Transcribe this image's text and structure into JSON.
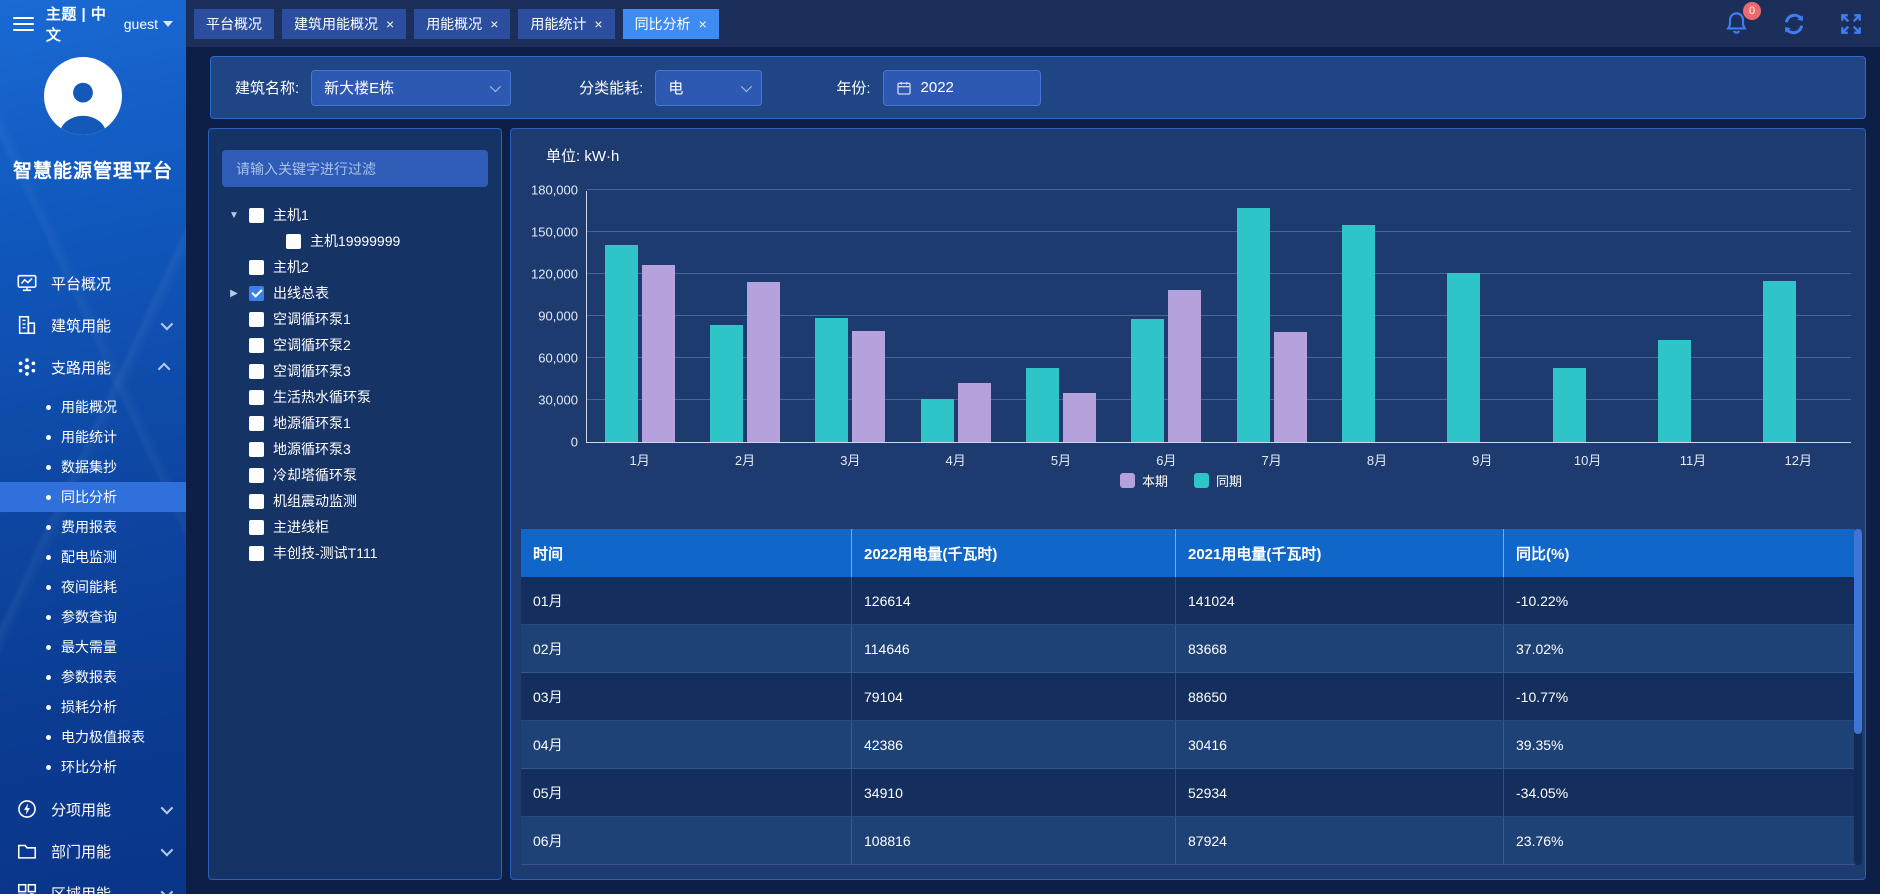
{
  "sidebar": {
    "top": {
      "theme_lang": "主题 | 中文",
      "user": "guest"
    },
    "brand": "智慧能源管理平台",
    "menu": [
      {
        "label": "平台概况",
        "icon": "monitor-icon"
      },
      {
        "label": "建筑用能",
        "icon": "building-icon",
        "chevron": "down"
      },
      {
        "label": "支路用能",
        "icon": "branch-icon",
        "chevron": "up",
        "active_child": "同比分析",
        "children": [
          "用能概况",
          "用能统计",
          "数据集抄",
          "同比分析",
          "费用报表",
          "配电监测",
          "夜间能耗",
          "参数查询",
          "最大需量",
          "参数报表",
          "损耗分析",
          "电力极值报表",
          "环比分析"
        ]
      },
      {
        "label": "分项用能",
        "icon": "energy-icon",
        "chevron": "down"
      },
      {
        "label": "部门用能",
        "icon": "folder-icon",
        "chevron": "down"
      },
      {
        "label": "区域用能",
        "icon": "region-icon",
        "chevron": "down"
      }
    ]
  },
  "topbar": {
    "tabs": [
      {
        "label": "平台概况",
        "closable": false,
        "active": false
      },
      {
        "label": "建筑用能概况",
        "closable": true,
        "active": false
      },
      {
        "label": "用能概况",
        "closable": true,
        "active": false
      },
      {
        "label": "用能统计",
        "closable": true,
        "active": false
      },
      {
        "label": "同比分析",
        "closable": true,
        "active": true
      }
    ],
    "notification_count": "0"
  },
  "filters": {
    "building_label": "建筑名称:",
    "building_value": "新大楼E栋",
    "category_label": "分类能耗:",
    "category_value": "电",
    "year_label": "年份:",
    "year_value": "2022"
  },
  "tree": {
    "search_placeholder": "请输入关键字进行过滤",
    "items": [
      {
        "label": "主机1",
        "arrow": "down",
        "checked": false,
        "level": 0
      },
      {
        "label": "主机19999999",
        "checked": false,
        "level": 1
      },
      {
        "label": "主机2",
        "checked": false,
        "level": 0
      },
      {
        "label": "出线总表",
        "arrow": "right",
        "checked": true,
        "level": 0
      },
      {
        "label": "空调循环泵1",
        "checked": false,
        "level": 0
      },
      {
        "label": "空调循环泵2",
        "checked": false,
        "level": 0
      },
      {
        "label": "空调循环泵3",
        "checked": false,
        "level": 0
      },
      {
        "label": "生活热水循环泵",
        "checked": false,
        "level": 0
      },
      {
        "label": "地源循环泵1",
        "checked": false,
        "level": 0
      },
      {
        "label": "地源循环泵3",
        "checked": false,
        "level": 0
      },
      {
        "label": "冷却塔循环泵",
        "checked": false,
        "level": 0
      },
      {
        "label": "机组震动监测",
        "checked": false,
        "level": 0
      },
      {
        "label": "主进线柜",
        "checked": false,
        "level": 0
      },
      {
        "label": "丰创技-测试T111",
        "checked": false,
        "level": 0
      }
    ]
  },
  "chart_data": {
    "type": "bar",
    "title": "单位: kW·h",
    "categories": [
      "1月",
      "2月",
      "3月",
      "4月",
      "5月",
      "6月",
      "7月",
      "8月",
      "9月",
      "10月",
      "11月",
      "12月"
    ],
    "series": [
      {
        "name": "同期",
        "color": "#2fc5c8",
        "values": [
          141024,
          83668,
          88650,
          30416,
          52934,
          87924,
          166800,
          155200,
          120600,
          52600,
          73100,
          115200
        ]
      },
      {
        "name": "本期",
        "color": "#b5a1dc",
        "values": [
          126614,
          114646,
          79104,
          42386,
          34910,
          108816,
          78500,
          null,
          null,
          null,
          null,
          null
        ]
      }
    ],
    "legend": [
      "本期",
      "同期"
    ],
    "legend_position": "bottom-center",
    "ylim": [
      0,
      180000
    ],
    "ytick_step": 30000,
    "grid": true
  },
  "table": {
    "columns": [
      "时间",
      "2022用电量(千瓦时)",
      "2021用电量(千瓦时)",
      "同比(%)"
    ],
    "rows": [
      [
        "01月",
        "126614",
        "141024",
        "-10.22%"
      ],
      [
        "02月",
        "114646",
        "83668",
        "37.02%"
      ],
      [
        "03月",
        "79104",
        "88650",
        "-10.77%"
      ],
      [
        "04月",
        "42386",
        "30416",
        "39.35%"
      ],
      [
        "05月",
        "34910",
        "52934",
        "-34.05%"
      ],
      [
        "06月",
        "108816",
        "87924",
        "23.76%"
      ]
    ]
  },
  "colors": {
    "accent": "#3e8cf2",
    "series_current": "#b5a1dc",
    "series_previous": "#2fc5c8",
    "table_header": "#1067c9",
    "badge": "#ef6a6a"
  }
}
